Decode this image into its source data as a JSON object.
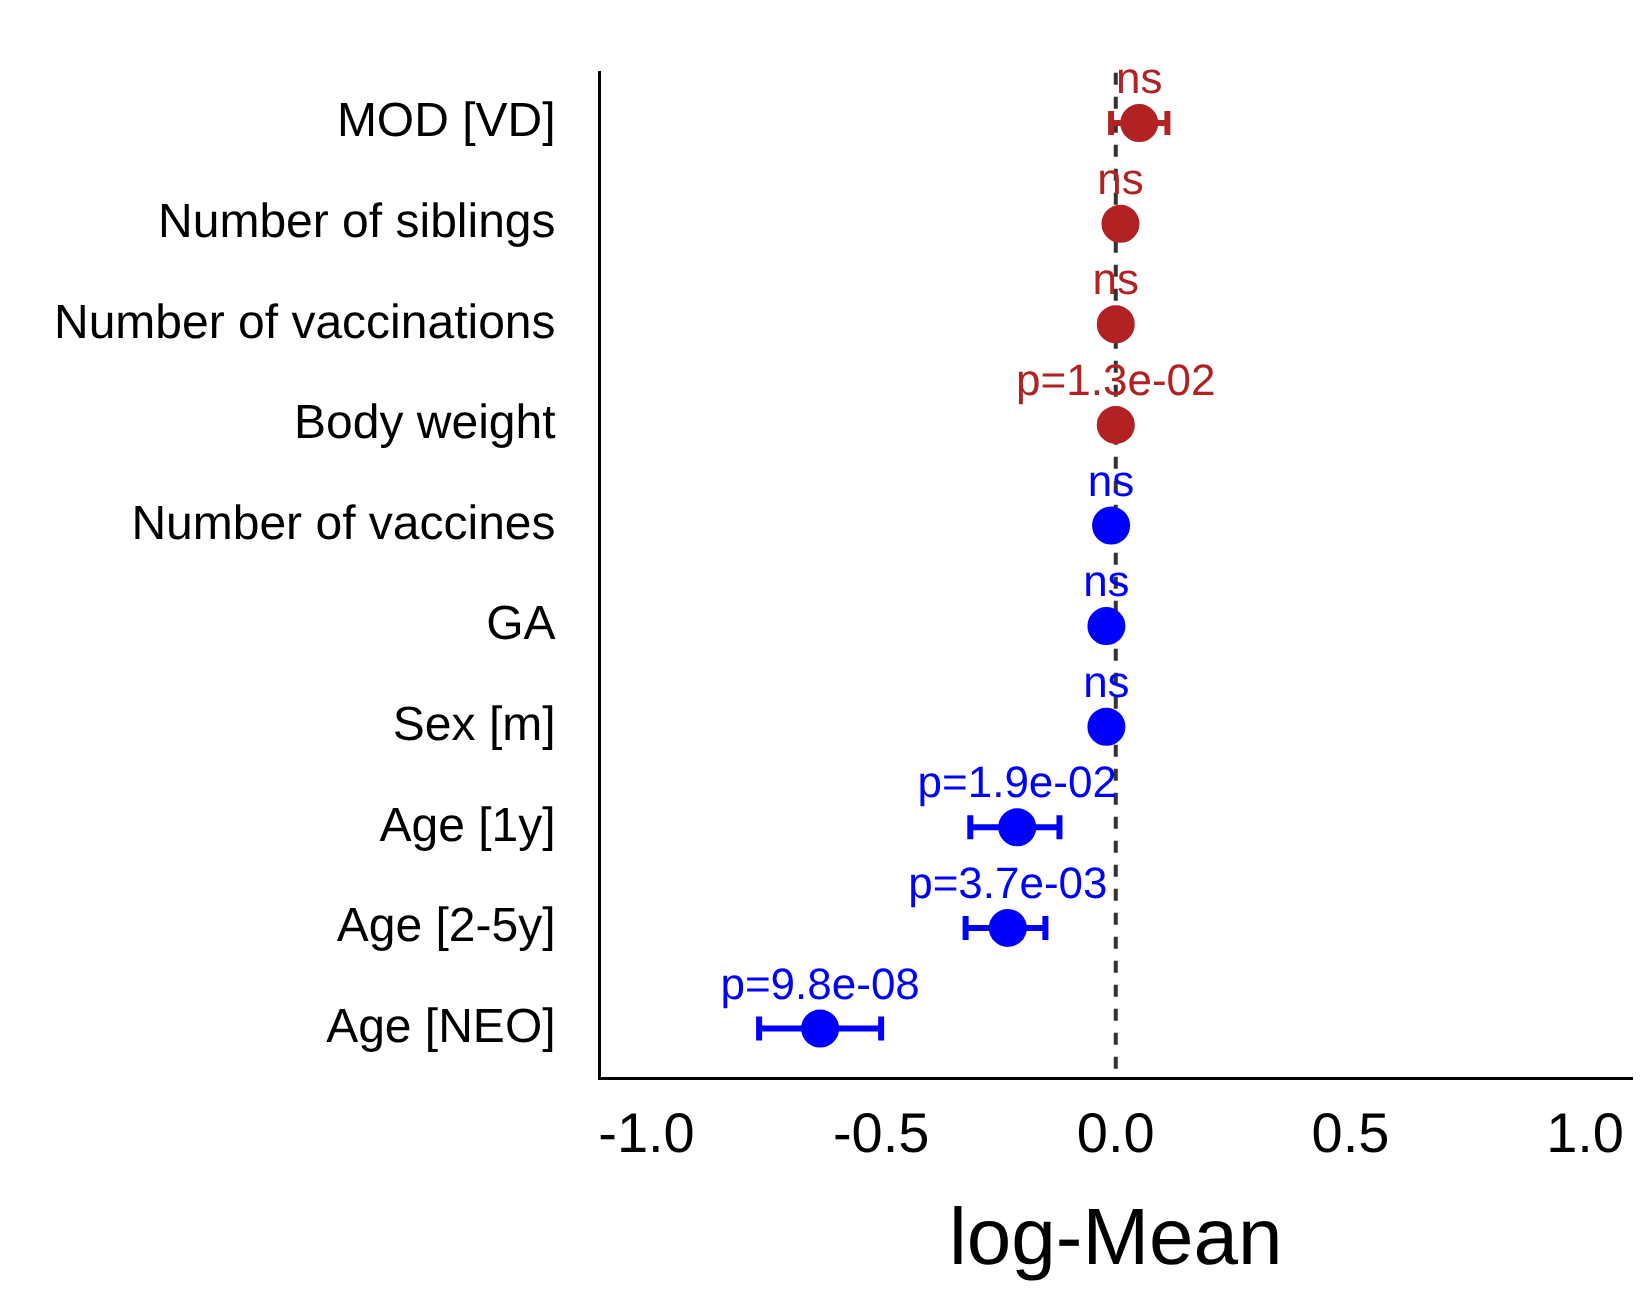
{
  "chart_data": {
    "type": "scatter",
    "orientation": "horizontal",
    "xlabel": "log-Mean",
    "categories": [
      "MOD [VD]",
      "Number of siblings",
      "Number of vaccinations",
      "Body weight",
      "Number of vaccines",
      "GA",
      "Sex [m]",
      "Age [1y]",
      "Age [2-5y]",
      "Age [NEO]"
    ],
    "series": [
      {
        "color": "#b22222",
        "values": [
          0.05,
          0.01,
          0.0,
          0.0,
          null,
          null,
          null,
          null,
          null,
          null
        ],
        "errors": [
          [
            -0.01,
            0.11
          ],
          null,
          null,
          null,
          null,
          null,
          null,
          null,
          null,
          null
        ]
      },
      {
        "color": "#0000ff",
        "values": [
          null,
          null,
          null,
          null,
          -0.01,
          -0.02,
          -0.02,
          -0.21,
          -0.23,
          -0.63
        ],
        "errors": [
          null,
          null,
          null,
          null,
          null,
          null,
          null,
          [
            -0.31,
            -0.12
          ],
          [
            -0.32,
            -0.15
          ],
          [
            -0.76,
            -0.5
          ]
        ]
      }
    ],
    "annotations": [
      {
        "text": "ns",
        "x": 0.05,
        "y": "MOD [VD]"
      },
      {
        "text": "ns",
        "x": 0.01,
        "y": "Number of siblings"
      },
      {
        "text": "ns",
        "x": 0.0,
        "y": "Number of vaccinations"
      },
      {
        "text": "p=1.3e-02",
        "x": 0.0,
        "y": "Body weight"
      },
      {
        "text": "ns",
        "x": -0.01,
        "y": "Number of vaccines"
      },
      {
        "text": "ns",
        "x": -0.02,
        "y": "GA"
      },
      {
        "text": "ns",
        "x": -0.02,
        "y": "Sex [m]"
      },
      {
        "text": "p=1.9e-02",
        "x": -0.21,
        "y": "Age [1y]"
      },
      {
        "text": "p=3.7e-03",
        "x": -0.23,
        "y": "Age [2-5y]"
      },
      {
        "text": "p=9.8e-08",
        "x": -0.63,
        "y": "Age [NEO]"
      }
    ],
    "xlim": [
      -1.1,
      1.1
    ],
    "xticks": [
      {
        "value": -1,
        "label": "-1.0"
      },
      {
        "value": -0.5,
        "label": "-0.5"
      },
      {
        "value": 0,
        "label": "0.0"
      },
      {
        "value": 0.5,
        "label": "0.5"
      },
      {
        "value": 1,
        "label": "1.0"
      }
    ],
    "ref_lines": [
      {
        "axis": "x",
        "value": 0,
        "color": "#333333",
        "line_style": "dashed"
      }
    ],
    "grid": false,
    "legend": false,
    "marker": "circle"
  }
}
